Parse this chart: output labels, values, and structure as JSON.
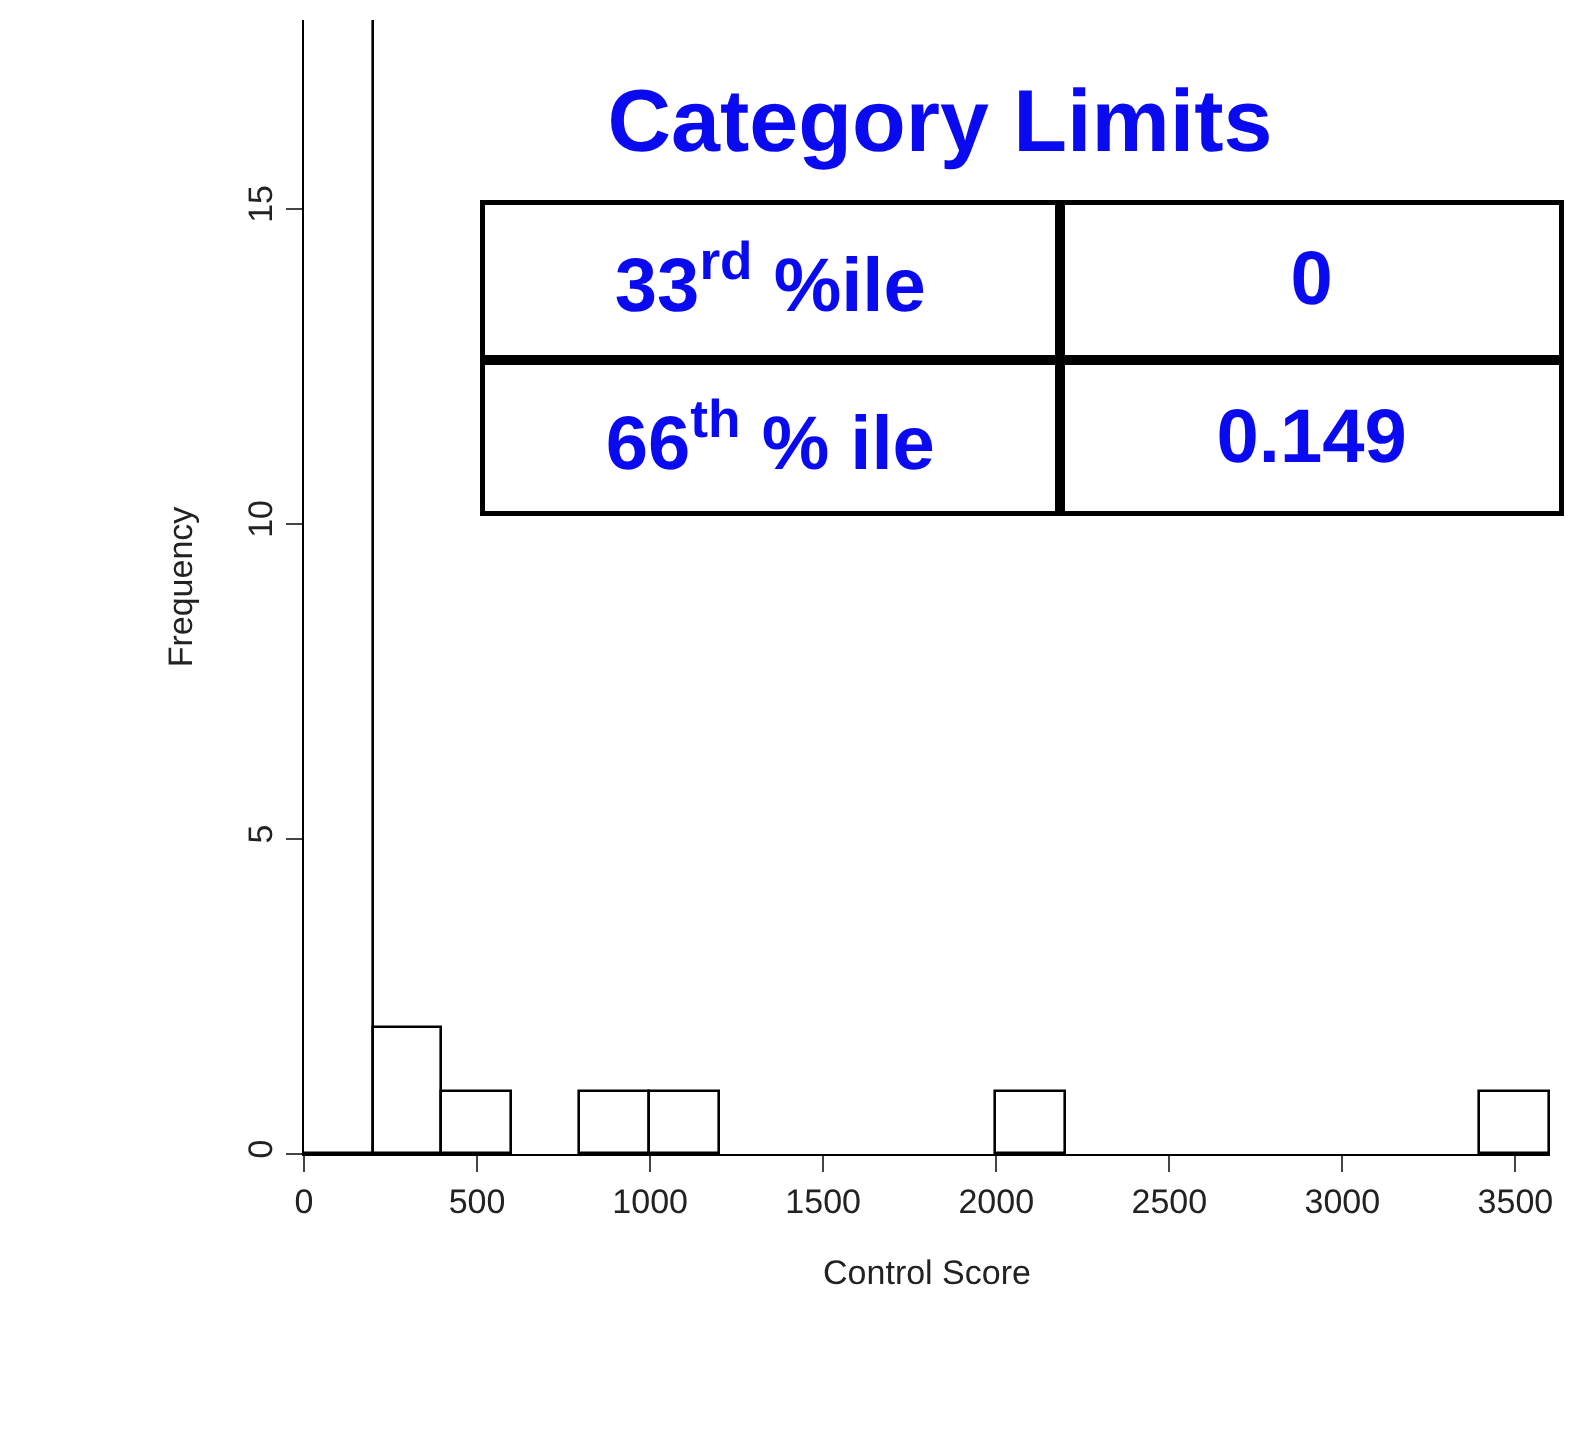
{
  "chart_data": {
    "type": "histogram",
    "title": "Category Limits",
    "xlabel": "Control Score",
    "ylabel": "Frequency",
    "bins": [
      0,
      200,
      400,
      600,
      800,
      1000,
      1200,
      1400,
      1600,
      1800,
      2000,
      2200,
      2400,
      2600,
      2800,
      3000,
      3200,
      3400,
      3600
    ],
    "values": [
      18,
      2,
      1,
      0,
      1,
      1,
      0,
      0,
      0,
      0,
      1,
      0,
      0,
      0,
      0,
      0,
      0,
      1
    ],
    "color": "#ffffff",
    "xlim": [
      0,
      3600
    ],
    "xticks": [
      0,
      500,
      1000,
      1500,
      2000,
      2500,
      3000,
      3500
    ],
    "ylim": [
      0,
      18
    ],
    "yticks": [
      0,
      5,
      10,
      15
    ],
    "annotations": [
      "33$^{rd}$ %ile",
      "0",
      "66$^{th}$ % ile",
      "0.149"
    ]
  }
}
